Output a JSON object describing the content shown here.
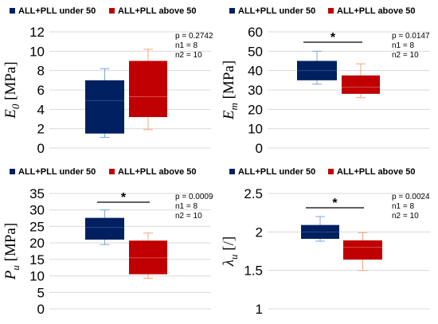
{
  "chart_data": [
    {
      "type": "box",
      "legend": [
        "ALL+PLL under 50",
        "ALL+PLL above  50"
      ],
      "ylabel_symbol": "E",
      "ylabel_sub": "0",
      "ylabel_unit": "[MPa]",
      "ylim": [
        0,
        12
      ],
      "yticks": [
        "0",
        "2",
        "4",
        "6",
        "8",
        "10",
        "12"
      ],
      "stats": [
        "p = 0.2742",
        "n1 = 8",
        "n2 = 10"
      ],
      "significance": "",
      "series": [
        {
          "name": "ALL+PLL under 50",
          "color": "#002060",
          "min": 1.1,
          "q1": 1.5,
          "median": 4.9,
          "q3": 7.0,
          "max": 8.2
        },
        {
          "name": "ALL+PLL above  50",
          "color": "#c00000",
          "min": 1.9,
          "q1": 3.2,
          "median": 5.3,
          "q3": 9.0,
          "max": 10.2
        }
      ]
    },
    {
      "type": "box",
      "legend": [
        "ALL+PLL under 50",
        "ALL+PLL above  50"
      ],
      "ylabel_symbol": "E",
      "ylabel_sub": "m",
      "ylabel_unit": "[MPa]",
      "ylim": [
        0,
        60
      ],
      "yticks": [
        "0",
        "10",
        "20",
        "30",
        "40",
        "50",
        "60"
      ],
      "stats": [
        "p = 0.0147",
        "n1 = 8",
        "n2 = 10"
      ],
      "significance": "*",
      "series": [
        {
          "name": "ALL+PLL under 50",
          "color": "#002060",
          "min": 33,
          "q1": 35,
          "median": 40,
          "q3": 45,
          "max": 50
        },
        {
          "name": "ALL+PLL above  50",
          "color": "#c00000",
          "min": 26,
          "q1": 28,
          "median": 31.5,
          "q3": 37.5,
          "max": 43.5
        }
      ]
    },
    {
      "type": "box",
      "legend": [
        "ALL+PLL under 50",
        "ALL+PLL above  50"
      ],
      "ylabel_symbol": "P",
      "ylabel_sub": "u",
      "ylabel_unit": "[MPa]",
      "ylim": [
        0,
        35
      ],
      "yticks": [
        "0",
        "5",
        "10",
        "15",
        "20",
        "25",
        "30",
        "35"
      ],
      "stats": [
        "p = 0.0009",
        "n1 = 8",
        "n2 = 10"
      ],
      "significance": "*",
      "series": [
        {
          "name": "ALL+PLL under 50",
          "color": "#002060",
          "min": 19.5,
          "q1": 21,
          "median": 24.7,
          "q3": 27.6,
          "max": 30
        },
        {
          "name": "ALL+PLL above  50",
          "color": "#c00000",
          "min": 9.3,
          "q1": 10.5,
          "median": 15.5,
          "q3": 20.7,
          "max": 23
        }
      ]
    },
    {
      "type": "box",
      "legend": [
        "ALL+PLL under 50",
        "ALL+PLL above  50"
      ],
      "ylabel_symbol": "λ",
      "ylabel_sub": "u",
      "ylabel_unit": "[/]",
      "ylim": [
        1,
        2.5
      ],
      "yticks": [
        "1",
        "1.5",
        "2",
        "2.5"
      ],
      "stats": [
        "p = 0.0024",
        "n1 = 8",
        "n2 = 10"
      ],
      "significance": "*",
      "series": [
        {
          "name": "ALL+PLL under 50",
          "color": "#002060",
          "min": 1.88,
          "q1": 1.91,
          "median": 2.0,
          "q3": 2.09,
          "max": 2.2
        },
        {
          "name": "ALL+PLL above  50",
          "color": "#c00000",
          "min": 1.5,
          "q1": 1.64,
          "median": 1.8,
          "q3": 1.89,
          "max": 1.99
        }
      ]
    }
  ]
}
